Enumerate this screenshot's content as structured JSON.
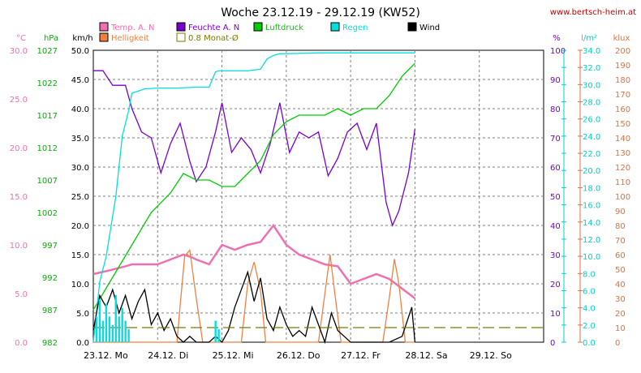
{
  "chart_data": {
    "type": "line",
    "title": "Woche 23.12.19 - 29.12.19 (KW52)",
    "source": "www.bertsch-heim.at",
    "x_tick_labels": [
      "23.12. Mo",
      "24.12. Di",
      "25.12. Mi",
      "26.12. Do",
      "27.12. Fr",
      "28.12. Sa",
      "29.12. So"
    ],
    "x_range_days": [
      0,
      7
    ],
    "grid": true,
    "legend": [
      {
        "label": "Temp. A. N",
        "color": "#f06fb0"
      },
      {
        "label": "Helligkeit",
        "color": "#f08040"
      },
      {
        "label": "Feuchte A. N",
        "color": "#7a00d0"
      },
      {
        "label": "0.8 Monat-Ø",
        "color": "#7a7a00"
      },
      {
        "label": "Luftdruck",
        "color": "#00cc00"
      },
      {
        "label": "Regen",
        "color": "#00e0e0"
      },
      {
        "label": "Wind",
        "color": "#000000"
      }
    ],
    "axes": {
      "temp": {
        "unit": "°C",
        "range": [
          0,
          30
        ],
        "ticks": [
          "0.0",
          "5.0",
          "10.0",
          "15.0",
          "20.0",
          "25.0",
          "30.0"
        ],
        "color": "#f06fb0"
      },
      "pressure": {
        "unit": "hPa",
        "range": [
          982,
          1027
        ],
        "ticks": [
          "982",
          "987",
          "992",
          "997",
          "1002",
          "1007",
          "1012",
          "1017",
          "1022",
          "1027"
        ],
        "color": "#00b000"
      },
      "wind": {
        "unit": "km/h",
        "range": [
          0,
          50
        ],
        "ticks": [
          "0.0",
          "5.0",
          "10.0",
          "15.0",
          "20.0",
          "25.0",
          "30.0",
          "35.0",
          "40.0",
          "45.0",
          "50.0"
        ],
        "color": "#000000"
      },
      "humidity": {
        "unit": "%",
        "range": [
          0,
          100
        ],
        "ticks": [
          "0",
          "10",
          "20",
          "30",
          "40",
          "50",
          "60",
          "70",
          "80",
          "90",
          "100"
        ],
        "color": "#7a00d0"
      },
      "rain": {
        "unit": "l/m²",
        "range": [
          0,
          34
        ],
        "ticks": [
          "0.0",
          "2.0",
          "4.0",
          "6.0",
          "8.0",
          "10.0",
          "12.0",
          "14.0",
          "16.0",
          "18.0",
          "20.0",
          "22.0",
          "24.0",
          "26.0",
          "28.0",
          "30.0",
          "32.0",
          "34.0"
        ],
        "color": "#00d0d0"
      },
      "lux": {
        "unit": "klux",
        "range": [
          0,
          200
        ],
        "ticks": [
          "0",
          "10",
          "20",
          "30",
          "40",
          "50",
          "60",
          "70",
          "80",
          "90",
          "100",
          "110",
          "120",
          "130",
          "140",
          "150",
          "160",
          "170",
          "180",
          "190",
          "200"
        ],
        "color": "#e07040"
      }
    },
    "series": [
      {
        "name": "Temp. A. N",
        "axis": "temp",
        "x": [
          0,
          0.2,
          0.5,
          0.6,
          0.8,
          1.0,
          1.2,
          1.4,
          1.5,
          1.6,
          1.8,
          1.9,
          2.0,
          2.2,
          2.4,
          2.6,
          2.8,
          3.0,
          3.2,
          3.4,
          3.6,
          3.8,
          4.0,
          4.2,
          4.4,
          4.6,
          4.8,
          5.0
        ],
        "values": [
          7,
          7.3,
          7.8,
          8,
          8,
          8,
          8.5,
          9,
          8.8,
          8.5,
          8,
          9,
          10,
          9.5,
          10,
          10.3,
          12,
          10,
          9,
          8.5,
          8.0,
          7.8,
          6,
          6.5,
          7,
          6.5,
          5.5,
          4.5
        ]
      },
      {
        "name": "Helligkeit",
        "axis": "lux",
        "x": [
          0,
          1.3,
          1.35,
          1.42,
          1.5,
          1.6,
          1.7,
          2.3,
          2.4,
          2.5,
          2.6,
          2.68,
          3.5,
          3.62,
          3.68,
          3.75,
          3.85,
          4.5,
          4.6,
          4.68,
          4.75,
          4.85,
          5.0
        ],
        "values": [
          0,
          0,
          25,
          59,
          63,
          30,
          0,
          0,
          40,
          55,
          35,
          0,
          0,
          40,
          60,
          35,
          0,
          0,
          30,
          57,
          40,
          0,
          0
        ]
      },
      {
        "name": "Feuchte A. N",
        "axis": "humidity",
        "x": [
          0,
          0.15,
          0.3,
          0.5,
          0.6,
          0.75,
          0.9,
          1.05,
          1.2,
          1.35,
          1.5,
          1.6,
          1.75,
          1.9,
          2.0,
          2.15,
          2.3,
          2.45,
          2.6,
          2.75,
          2.9,
          3.05,
          3.2,
          3.35,
          3.5,
          3.65,
          3.8,
          3.95,
          4.1,
          4.25,
          4.4,
          4.55,
          4.65,
          4.75,
          4.9,
          5.0
        ],
        "values": [
          93,
          93,
          88,
          88,
          80,
          72,
          70,
          58,
          68,
          75,
          62,
          55,
          60,
          72,
          82,
          65,
          70,
          66,
          58,
          68,
          82,
          65,
          72,
          70,
          72,
          57,
          63,
          72,
          75,
          66,
          75,
          48,
          40,
          45,
          58,
          73
        ]
      },
      {
        "name": "Luftdruck",
        "axis": "pressure",
        "x": [
          0,
          0.3,
          0.6,
          0.9,
          1.2,
          1.4,
          1.6,
          1.8,
          2.0,
          2.2,
          2.4,
          2.6,
          2.8,
          3.0,
          3.2,
          3.4,
          3.6,
          3.8,
          4.0,
          4.2,
          4.4,
          4.6,
          4.8,
          5.0
        ],
        "values": [
          987,
          992,
          997,
          1002,
          1005,
          1008,
          1007,
          1007,
          1006,
          1006,
          1008,
          1010,
          1014,
          1016,
          1017,
          1017,
          1017,
          1018,
          1017,
          1018,
          1018,
          1020,
          1023,
          1025
        ]
      },
      {
        "name": "Regen",
        "axis": "rain",
        "x": [
          0,
          0.1,
          0.2,
          0.35,
          0.45,
          0.55,
          0.6,
          0.8,
          1.0,
          1.3,
          1.6,
          1.8,
          1.9,
          1.95,
          2.4,
          2.6,
          2.7,
          2.8,
          2.9,
          3.0,
          3.5,
          4.0,
          5.0
        ],
        "values": [
          0,
          7,
          10,
          17,
          24,
          27,
          29,
          29.5,
          29.6,
          29.6,
          29.7,
          29.7,
          31.5,
          31.6,
          31.6,
          31.8,
          33,
          33.4,
          33.6,
          33.6,
          33.7,
          33.7,
          33.7
        ]
      },
      {
        "name": "Wind",
        "axis": "wind",
        "x": [
          0,
          0.1,
          0.2,
          0.3,
          0.4,
          0.5,
          0.6,
          0.7,
          0.8,
          0.9,
          1.0,
          1.1,
          1.2,
          1.3,
          1.4,
          1.5,
          1.6,
          1.7,
          1.8,
          1.9,
          2.0,
          2.1,
          2.2,
          2.3,
          2.4,
          2.5,
          2.6,
          2.7,
          2.8,
          2.9,
          3.0,
          3.1,
          3.2,
          3.3,
          3.4,
          3.5,
          3.6,
          3.7,
          3.8,
          3.9,
          4.0,
          4.2,
          4.4,
          4.6,
          4.8,
          4.95,
          5.0
        ],
        "values": [
          2,
          8,
          6,
          9,
          5,
          8,
          4,
          7,
          9,
          3,
          5,
          2,
          4,
          1,
          0,
          1,
          0,
          0,
          0,
          1,
          0,
          2,
          6,
          9,
          12,
          7,
          11,
          4,
          2,
          6,
          3,
          1,
          2,
          1,
          6,
          3,
          0,
          5,
          2,
          1,
          0,
          0,
          0,
          0,
          1,
          6,
          0
        ]
      },
      {
        "name": "0.8 Monat-Ø",
        "axis": "temp",
        "x": [
          0,
          7
        ],
        "values": [
          1.5,
          1.5
        ]
      }
    ]
  }
}
